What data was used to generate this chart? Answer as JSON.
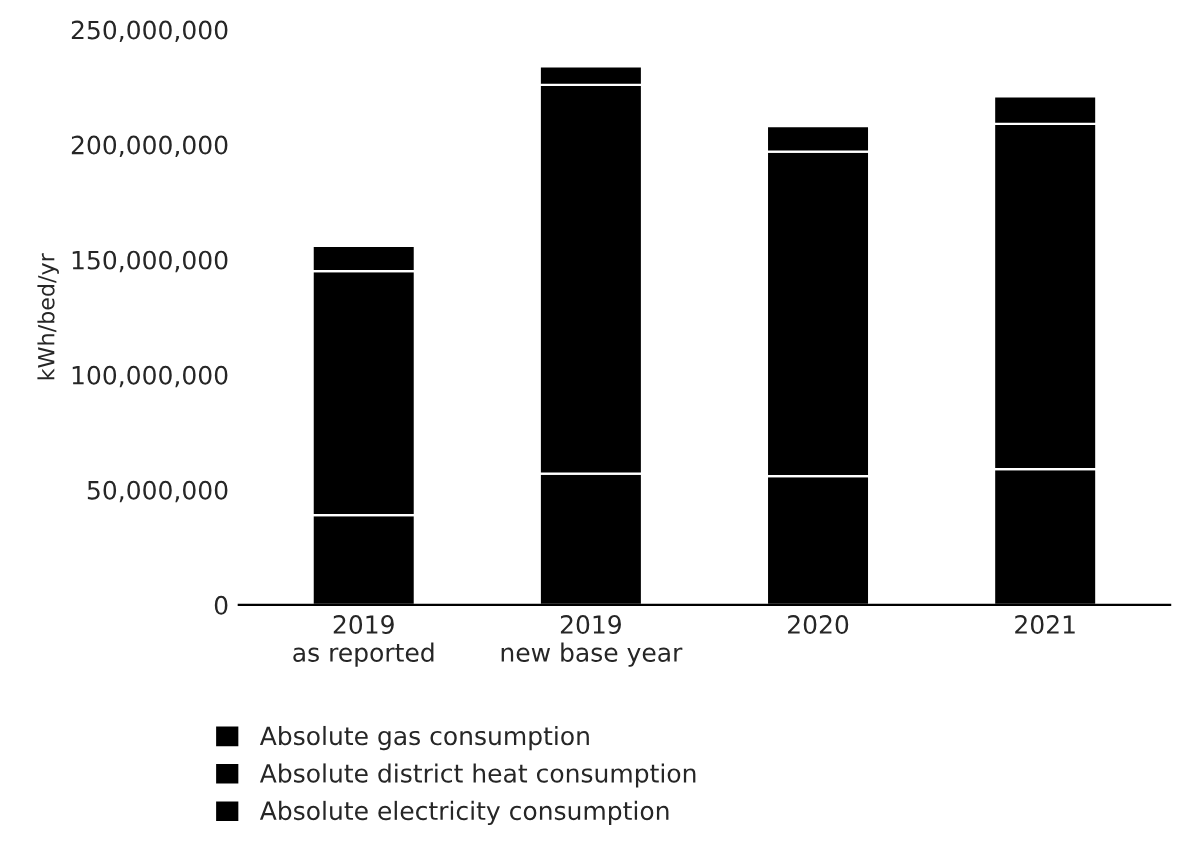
{
  "chart_data": {
    "type": "bar",
    "stacked": true,
    "ylabel": "kWh/bed/yr",
    "categories": [
      "2019\nas reported",
      "2019\nnew base year",
      "2020",
      "2021"
    ],
    "series": [
      {
        "name": "Absolute electricity consumption",
        "color": "#000000",
        "values": [
          39000000,
          57000000,
          56000000,
          59000000
        ]
      },
      {
        "name": "Absolute district heat consumption",
        "color": "#000000",
        "values": [
          106000000,
          169000000,
          141000000,
          150000000
        ]
      },
      {
        "name": "Absolute gas consumption",
        "color": "#000000",
        "values": [
          11000000,
          8000000,
          11000000,
          12000000
        ]
      }
    ],
    "ylim": [
      0,
      250000000
    ],
    "yticks": [
      {
        "value": 0,
        "label": "0"
      },
      {
        "value": 50000000,
        "label": "50,000,000"
      },
      {
        "value": 100000000,
        "label": "100,000,000"
      },
      {
        "value": 150000000,
        "label": "150,000,000"
      },
      {
        "value": 200000000,
        "label": "200,000,000"
      },
      {
        "value": 250000000,
        "label": "250,000,000"
      }
    ],
    "grid": false,
    "legend": "bottom left"
  }
}
